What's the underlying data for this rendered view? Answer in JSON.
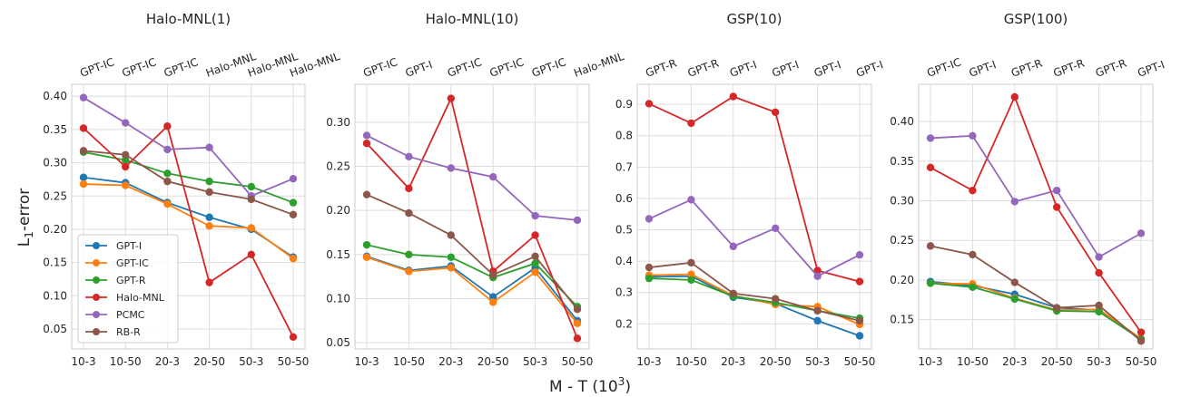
{
  "figure": {
    "ylabel_main": "L",
    "ylabel_sub": "1",
    "ylabel_rest": "-error",
    "xlabel_main": "M - T (10",
    "xlabel_sup": "3",
    "xlabel_close": ")"
  },
  "colors": {
    "GPT-I": "#1f77b4",
    "GPT-IC": "#ff7f0e",
    "GPT-R": "#2ca02c",
    "Halo-MNL": "#d62728",
    "PCMC": "#9467bd",
    "RB-R": "#8c564b"
  },
  "legend": [
    "GPT-I",
    "GPT-IC",
    "GPT-R",
    "Halo-MNL",
    "PCMC",
    "RB-R"
  ],
  "chart_data": [
    {
      "type": "line",
      "title": "Halo-MNL(1)",
      "categories": [
        "10-3",
        "10-50",
        "20-3",
        "20-50",
        "50-3",
        "50-50"
      ],
      "top_labels": [
        "GPT-IC",
        "GPT-IC",
        "GPT-IC",
        "Halo-MNL",
        "Halo-MNL",
        "Halo-MNL"
      ],
      "yticks": [
        "0.05",
        "0.10",
        "0.15",
        "0.20",
        "0.25",
        "0.30",
        "0.35",
        "0.40"
      ],
      "ylim": [
        0.02,
        0.418
      ],
      "series": [
        {
          "name": "GPT-I",
          "values": [
            0.278,
            0.27,
            0.24,
            0.218,
            0.2,
            0.158
          ]
        },
        {
          "name": "GPT-IC",
          "values": [
            0.268,
            0.266,
            0.238,
            0.205,
            0.202,
            0.156
          ]
        },
        {
          "name": "GPT-R",
          "values": [
            0.316,
            0.304,
            0.284,
            0.272,
            0.264,
            0.24
          ]
        },
        {
          "name": "Halo-MNL",
          "values": [
            0.352,
            0.294,
            0.355,
            0.12,
            0.162,
            0.038
          ]
        },
        {
          "name": "PCMC",
          "values": [
            0.398,
            0.36,
            0.32,
            0.323,
            0.25,
            0.276
          ]
        },
        {
          "name": "RB-R",
          "values": [
            0.318,
            0.312,
            0.272,
            0.256,
            0.245,
            0.222
          ]
        }
      ]
    },
    {
      "type": "line",
      "title": "Halo-MNL(10)",
      "categories": [
        "10-3",
        "10-50",
        "20-3",
        "20-50",
        "50-3",
        "50-50"
      ],
      "top_labels": [
        "GPT-IC",
        "GPT-I",
        "GPT-IC",
        "GPT-IC",
        "GPT-IC",
        "Halo-MNL"
      ],
      "yticks": [
        "0.05",
        "0.10",
        "0.15",
        "0.20",
        "0.25",
        "0.30"
      ],
      "ylim": [
        0.043,
        0.343
      ],
      "series": [
        {
          "name": "GPT-I",
          "values": [
            0.148,
            0.132,
            0.137,
            0.102,
            0.135,
            0.075
          ]
        },
        {
          "name": "GPT-IC",
          "values": [
            0.147,
            0.131,
            0.135,
            0.096,
            0.13,
            0.072
          ]
        },
        {
          "name": "GPT-R",
          "values": [
            0.161,
            0.15,
            0.147,
            0.124,
            0.14,
            0.091
          ]
        },
        {
          "name": "Halo-MNL",
          "values": [
            0.276,
            0.225,
            0.327,
            0.131,
            0.172,
            0.055
          ]
        },
        {
          "name": "PCMC",
          "values": [
            0.285,
            0.261,
            0.248,
            0.238,
            0.194,
            0.189
          ]
        },
        {
          "name": "RB-R",
          "values": [
            0.218,
            0.197,
            0.172,
            0.127,
            0.148,
            0.088
          ]
        }
      ]
    },
    {
      "type": "line",
      "title": "GSP(10)",
      "categories": [
        "10-3",
        "10-50",
        "20-3",
        "20-50",
        "50-3",
        "50-50"
      ],
      "top_labels": [
        "GPT-R",
        "GPT-R",
        "GPT-I",
        "GPT-I",
        "GPT-I",
        "GPT-I"
      ],
      "yticks": [
        "0.2",
        "0.3",
        "0.4",
        "0.5",
        "0.6",
        "0.7",
        "0.8",
        "0.9"
      ],
      "ylim": [
        0.12,
        0.964
      ],
      "series": [
        {
          "name": "GPT-I",
          "values": [
            0.35,
            0.352,
            0.285,
            0.265,
            0.21,
            0.162
          ]
        },
        {
          "name": "GPT-IC",
          "values": [
            0.355,
            0.358,
            0.29,
            0.262,
            0.255,
            0.198
          ]
        },
        {
          "name": "GPT-R",
          "values": [
            0.345,
            0.34,
            0.288,
            0.268,
            0.242,
            0.218
          ]
        },
        {
          "name": "Halo-MNL",
          "values": [
            0.902,
            0.84,
            0.925,
            0.875,
            0.37,
            0.335
          ]
        },
        {
          "name": "PCMC",
          "values": [
            0.535,
            0.596,
            0.447,
            0.505,
            0.352,
            0.42
          ]
        },
        {
          "name": "RB-R",
          "values": [
            0.38,
            0.395,
            0.297,
            0.28,
            0.242,
            0.21
          ]
        }
      ]
    },
    {
      "type": "line",
      "title": "GSP(100)",
      "categories": [
        "10-3",
        "10-50",
        "20-3",
        "20-50",
        "50-3",
        "50-50"
      ],
      "top_labels": [
        "GPT-IC",
        "GPT-I",
        "GPT-R",
        "GPT-R",
        "GPT-R",
        "GPT-I"
      ],
      "yticks": [
        "0.15",
        "0.20",
        "0.25",
        "0.30",
        "0.35",
        "0.40"
      ],
      "ylim": [
        0.113,
        0.447
      ],
      "series": [
        {
          "name": "GPT-I",
          "values": [
            0.198,
            0.193,
            0.182,
            0.165,
            0.162,
            0.125
          ]
        },
        {
          "name": "GPT-IC",
          "values": [
            0.196,
            0.195,
            0.177,
            0.162,
            0.163,
            0.126
          ]
        },
        {
          "name": "GPT-R",
          "values": [
            0.196,
            0.191,
            0.176,
            0.161,
            0.16,
            0.125
          ]
        },
        {
          "name": "Halo-MNL",
          "values": [
            0.342,
            0.313,
            0.431,
            0.292,
            0.209,
            0.134
          ]
        },
        {
          "name": "PCMC",
          "values": [
            0.379,
            0.382,
            0.299,
            0.313,
            0.229,
            0.259
          ]
        },
        {
          "name": "RB-R",
          "values": [
            0.243,
            0.232,
            0.197,
            0.165,
            0.168,
            0.123
          ]
        }
      ]
    }
  ]
}
